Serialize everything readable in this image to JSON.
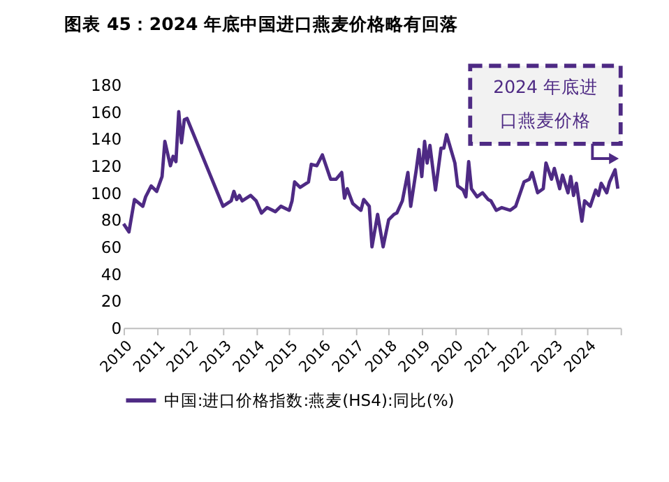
{
  "chart_data": {
    "type": "line",
    "title": "图表 45：2024 年底中国进口燕麦价格略有回落",
    "x": [
      "2010-01",
      "2010-03",
      "2010-05",
      "2010-08",
      "2010-09",
      "2010-11",
      "2011-01",
      "2011-03",
      "2011-04",
      "2011-06",
      "2011-07",
      "2011-08",
      "2011-09",
      "2011-10",
      "2011-11",
      "2011-12",
      "2013-01",
      "2013-04",
      "2013-05",
      "2013-06",
      "2013-07",
      "2013-08",
      "2013-11",
      "2014-01",
      "2014-03",
      "2014-05",
      "2014-08",
      "2014-10",
      "2015-01",
      "2015-02",
      "2015-03",
      "2015-05",
      "2015-08",
      "2015-09",
      "2015-11",
      "2016-01",
      "2016-04",
      "2016-06",
      "2016-08",
      "2016-09",
      "2016-10",
      "2016-12",
      "2017-03",
      "2017-04",
      "2017-06",
      "2017-07",
      "2017-09",
      "2017-11",
      "2018-01",
      "2018-03",
      "2018-04",
      "2018-06",
      "2018-08",
      "2018-09",
      "2018-11",
      "2018-12",
      "2019-01",
      "2019-02",
      "2019-03",
      "2019-04",
      "2019-06",
      "2019-08",
      "2019-09",
      "2019-10",
      "2020-01",
      "2020-02",
      "2020-04",
      "2020-05",
      "2020-06",
      "2020-07",
      "2020-09",
      "2020-11",
      "2021-01",
      "2021-02",
      "2021-04",
      "2021-06",
      "2021-09",
      "2021-11",
      "2022-02",
      "2022-04",
      "2022-05",
      "2022-07",
      "2022-09",
      "2022-10",
      "2022-12",
      "2023-01",
      "2023-03",
      "2023-04",
      "2023-06",
      "2023-07",
      "2023-08",
      "2023-09",
      "2023-11",
      "2023-12",
      "2024-02",
      "2024-04",
      "2024-05",
      "2024-06",
      "2024-08",
      "2024-09",
      "2024-11",
      "2024-12"
    ],
    "series": [
      {
        "name": "中国:进口价格指数:燕麦(HS4):同比(%)",
        "color": "#4e2a84",
        "values": [
          77,
          71,
          95,
          90,
          97,
          105,
          101,
          112,
          138,
          120,
          127,
          123,
          160,
          137,
          154,
          155,
          90,
          94,
          101,
          95,
          98,
          94,
          98,
          94,
          85,
          89,
          86,
          90,
          87,
          94,
          108,
          104,
          108,
          121,
          120,
          128,
          110,
          110,
          115,
          96,
          103,
          92,
          87,
          95,
          90,
          60,
          84,
          60,
          80,
          84,
          85,
          94,
          115,
          90,
          117,
          132,
          112,
          138,
          122,
          135,
          102,
          133,
          133,
          143,
          122,
          105,
          102,
          97,
          123,
          103,
          97,
          100,
          95,
          94,
          87,
          89,
          87,
          90,
          108,
          110,
          115,
          100,
          103,
          122,
          110,
          118,
          103,
          113,
          100,
          112,
          98,
          107,
          79,
          94,
          90,
          102,
          98,
          107,
          100,
          108,
          117,
          103
        ]
      }
    ],
    "xlim": [
      "2010-01",
      "2025-01"
    ],
    "xticks": [
      "2010",
      "2011",
      "2012",
      "2013",
      "2014",
      "2015",
      "2016",
      "2017",
      "2018",
      "2019",
      "2020",
      "2021",
      "2022",
      "2023",
      "2024",
      {
        "value": "2025",
        "label": null
      }
    ],
    "ylim": [
      0,
      180
    ],
    "yticks": [
      0,
      20,
      40,
      60,
      80,
      100,
      120,
      140,
      160,
      180
    ],
    "grid": false,
    "legend": "bottom",
    "line_style": "solid",
    "marker": "none",
    "annotations": [
      "2024 年底进口燕麦价格"
    ]
  }
}
